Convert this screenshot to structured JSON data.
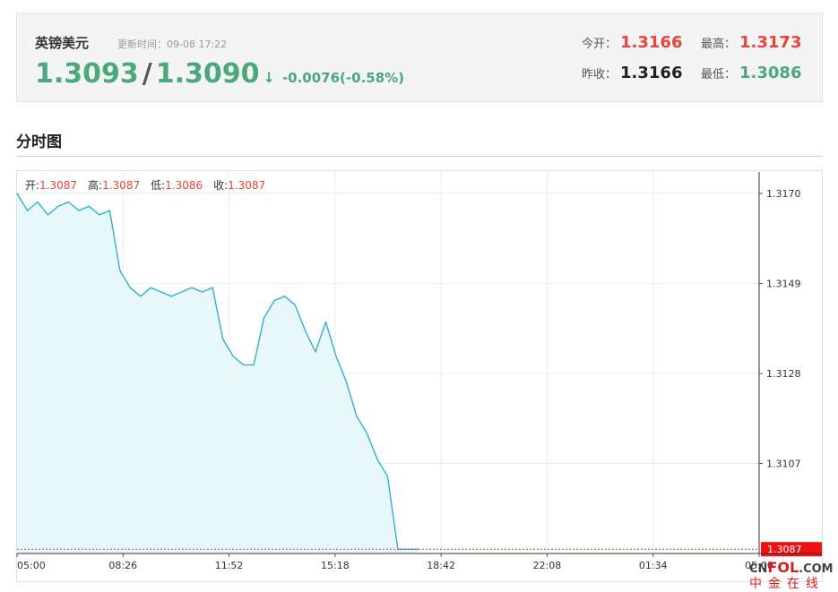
{
  "quote": {
    "name": "英镑美元",
    "update_time": "更新时间：09-08 17:22",
    "bid": "1.3093",
    "slash": "/",
    "ask": "1.3090",
    "arrow": "↓",
    "change": "-0.0076(-0.58%)",
    "open_label": "今开：",
    "open_value": "1.3166",
    "high_label": "最高：",
    "high_value": "1.3173",
    "prev_close_label": "昨收：",
    "prev_close_value": "1.3166",
    "low_label": "最低：",
    "low_value": "1.3086"
  },
  "section": {
    "title": "分时图"
  },
  "ohlc": {
    "open_label": "开:",
    "open_value": "1.3087",
    "high_label": "高:",
    "high_value": "1.3087",
    "low_label": "低:",
    "low_value": "1.3086",
    "close_label": "收:",
    "close_value": "1.3087"
  },
  "watermark": {
    "brand_top_a": "CN",
    "brand_top_b": "FOL",
    "brand_top_c": ".COM",
    "brand_bottom": "中金在线"
  },
  "colors": {
    "line": "#2ab3cf",
    "fill": "#e8f8fb",
    "up": "#e6453b",
    "down": "#4aa87a",
    "last_price_tag": "#ee1111"
  },
  "chart_data": {
    "type": "area",
    "title": "",
    "xlabel": "",
    "ylabel": "",
    "x_ticks": [
      "05:00",
      "08:26",
      "11:52",
      "15:18",
      "18:42",
      "22:08",
      "01:34",
      "05:00"
    ],
    "y_ticks": [
      1.3107,
      1.3128,
      1.3149,
      1.317
    ],
    "ylim": [
      1.3086,
      1.3175
    ],
    "last_price": 1.3087,
    "last_price_label": "1.3087",
    "grid": true,
    "axis_side": "right",
    "series": [
      {
        "x": [
          "05:00",
          "05:20",
          "05:40",
          "06:00",
          "06:20",
          "06:40",
          "07:00",
          "07:20",
          "07:40",
          "08:00",
          "08:20",
          "08:40",
          "09:00",
          "09:20",
          "09:40",
          "10:00",
          "10:20",
          "10:40",
          "11:00",
          "11:20",
          "11:40",
          "12:00",
          "12:20",
          "12:40",
          "13:00",
          "13:20",
          "13:40",
          "14:00",
          "14:20",
          "14:40",
          "15:00",
          "15:20",
          "15:40",
          "16:00",
          "16:20",
          "16:40",
          "17:00",
          "17:20",
          "17:40",
          "18:00"
        ],
        "values": [
          1.317,
          1.3166,
          1.3168,
          1.3165,
          1.3167,
          1.3168,
          1.3166,
          1.3167,
          1.3165,
          1.3166,
          1.3152,
          1.3148,
          1.3146,
          1.3148,
          1.3147,
          1.3146,
          1.3147,
          1.3148,
          1.3147,
          1.3148,
          1.3136,
          1.3132,
          1.313,
          1.313,
          1.3141,
          1.3145,
          1.3146,
          1.3144,
          1.3138,
          1.3133,
          1.314,
          1.3132,
          1.3126,
          1.3118,
          1.3114,
          1.3108,
          1.3104,
          1.3087,
          1.3087,
          1.3087
        ]
      }
    ]
  }
}
